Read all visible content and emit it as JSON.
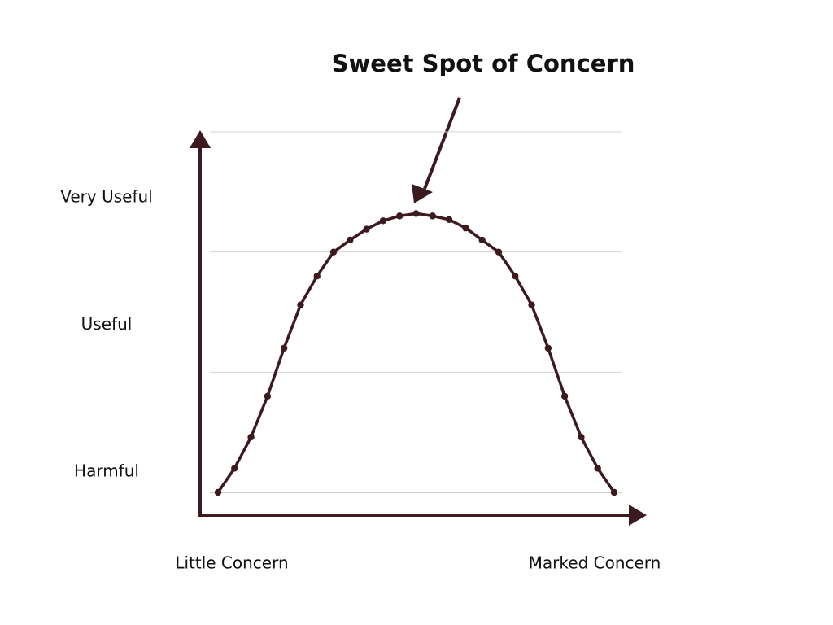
{
  "chart_data": {
    "type": "line",
    "annotation": "Sweet Spot of Concern",
    "x": [
      0,
      1,
      2,
      3,
      4,
      5,
      6,
      7,
      8,
      9,
      10,
      11,
      12,
      13,
      14,
      15,
      16,
      17,
      18,
      19,
      20,
      21,
      22,
      23,
      24
    ],
    "xlim": [
      0,
      24
    ],
    "xticks": [
      {
        "value": 0,
        "label": "Little Concern"
      },
      {
        "value": 24,
        "label": "Marked Concern"
      }
    ],
    "series": [
      {
        "color": "#3b1a20",
        "values": [
          0,
          0.2,
          0.46,
          0.8,
          1.2,
          1.56,
          1.8,
          2.0,
          2.1,
          2.19,
          2.26,
          2.3,
          2.32,
          2.3,
          2.27,
          2.2,
          2.1,
          2.0,
          1.8,
          1.56,
          1.2,
          0.8,
          0.46,
          0.2,
          0
        ]
      }
    ],
    "ylim": [
      0,
      3
    ],
    "yticks": [
      {
        "value": 0.17,
        "label": "Harmful"
      },
      {
        "value": 1.39,
        "label": "Useful"
      },
      {
        "value": 2.45,
        "label": "Very Useful"
      }
    ],
    "gridlines": [
      0,
      1,
      2,
      3
    ],
    "grid": true
  }
}
